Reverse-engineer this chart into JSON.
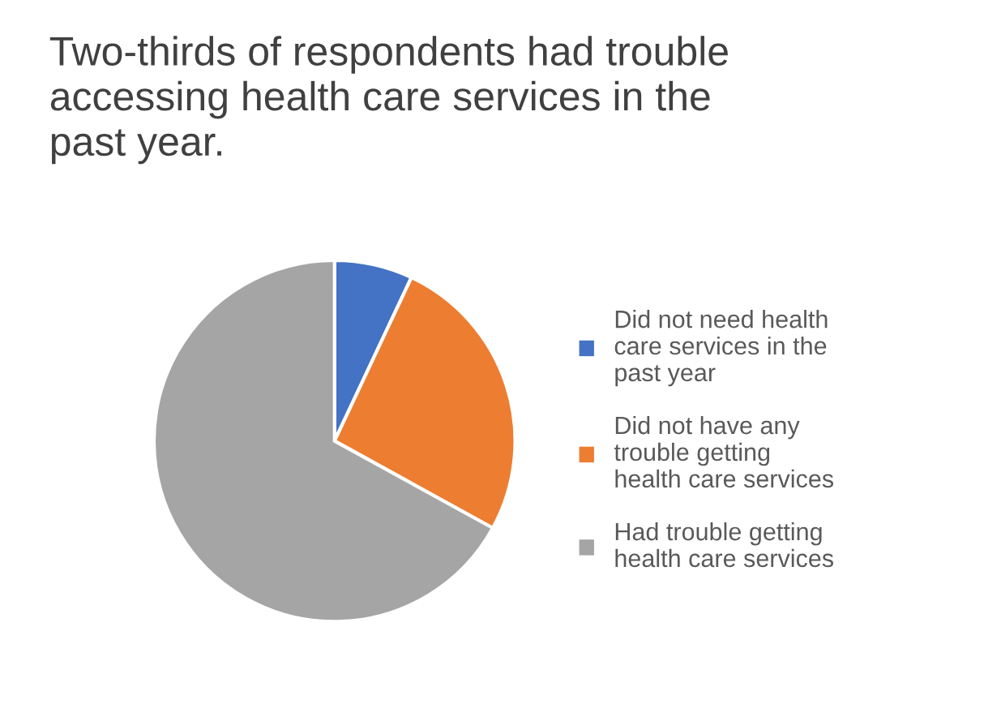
{
  "chart_data": {
    "type": "pie",
    "title": "Two-thirds of respondents had trouble accessing health care services in the past year.",
    "categories": [
      "Did not need health care services in the past year",
      "Did not have any trouble getting health care services",
      "Had trouble getting health care services"
    ],
    "values": [
      7,
      26,
      67
    ],
    "colors": [
      "#4472c4",
      "#ed7d31",
      "#a5a5a5"
    ],
    "legend": "right"
  }
}
